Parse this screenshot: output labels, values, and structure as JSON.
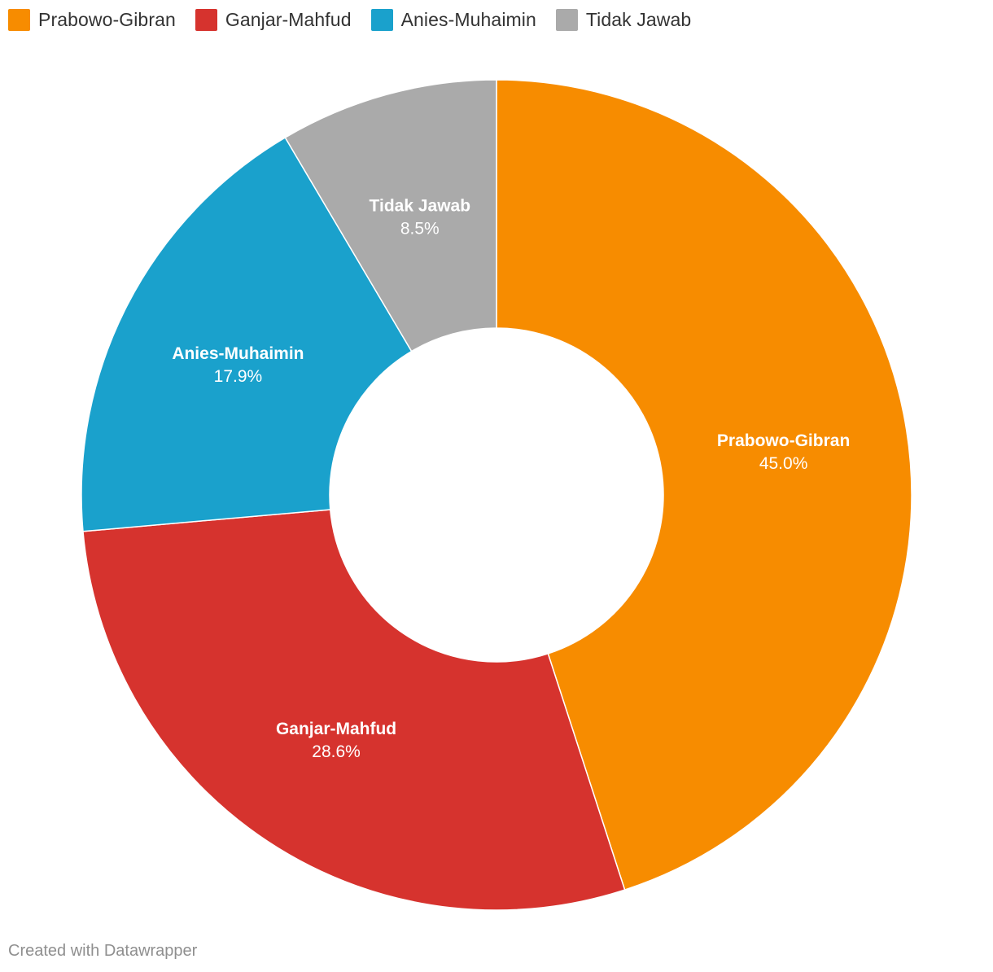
{
  "chart_data": {
    "type": "pie",
    "variant": "donut",
    "categories": [
      "Prabowo-Gibran",
      "Ganjar-Mahfud",
      "Anies-Muhaimin",
      "Tidak Jawab"
    ],
    "values": [
      45.0,
      28.6,
      17.9,
      8.5
    ],
    "value_labels": [
      "45.0%",
      "28.6%",
      "17.9%",
      "8.5%"
    ],
    "colors": [
      "#f78c00",
      "#d6332e",
      "#1aa1cc",
      "#aaaaaa"
    ],
    "unit": "%",
    "legend_placement": "top-left"
  },
  "legend": {
    "items": [
      {
        "label": "Prabowo-Gibran",
        "color": "#f78c00"
      },
      {
        "label": "Ganjar-Mahfud",
        "color": "#d6332e"
      },
      {
        "label": "Anies-Muhaimin",
        "color": "#1aa1cc"
      },
      {
        "label": "Tidak Jawab",
        "color": "#aaaaaa"
      }
    ]
  },
  "footer": {
    "credit": "Created with Datawrapper"
  }
}
